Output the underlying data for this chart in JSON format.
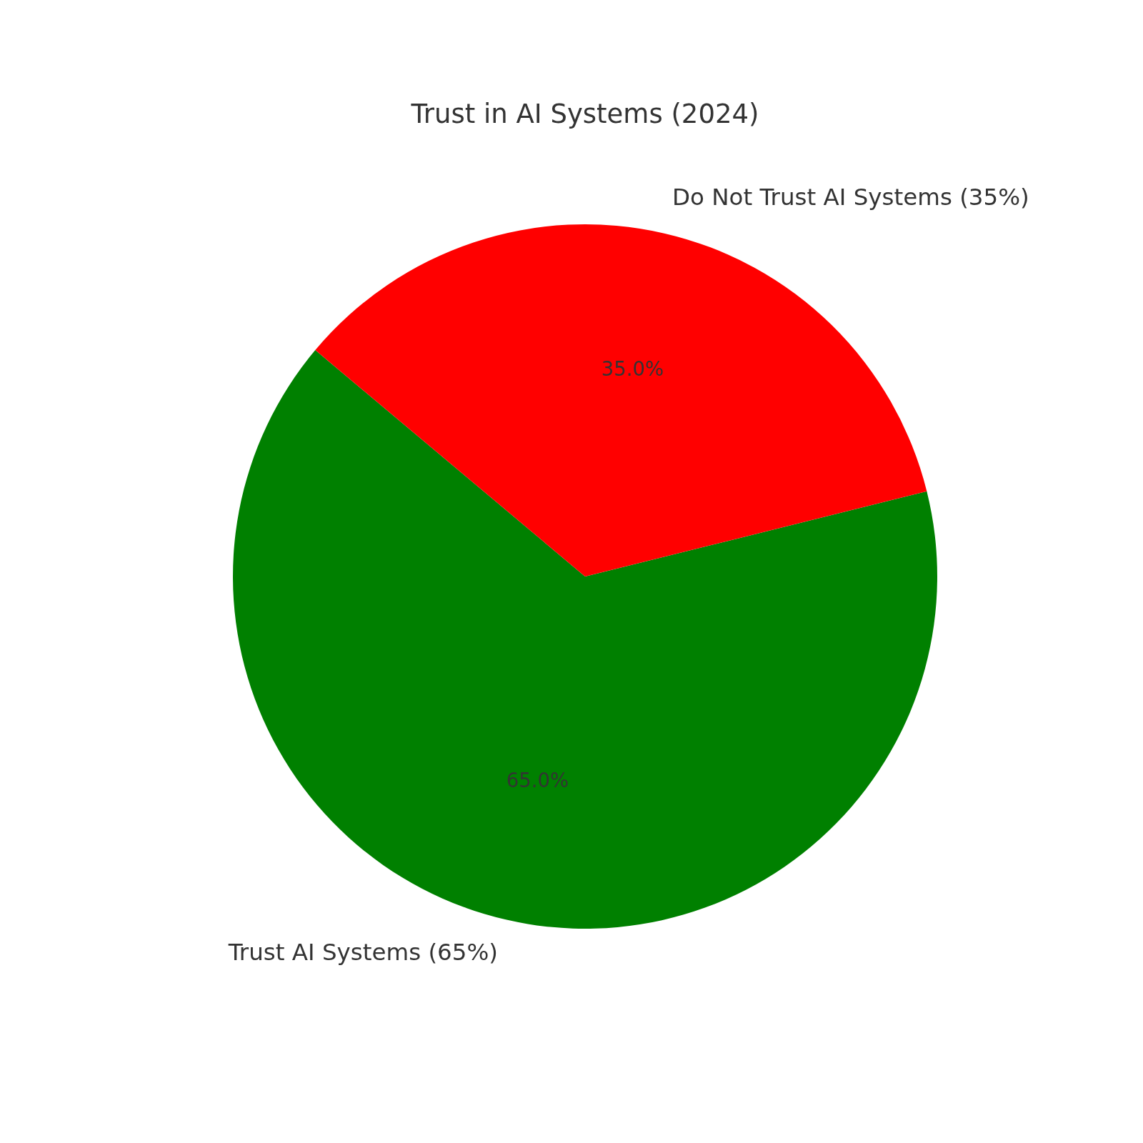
{
  "chart_data": {
    "type": "pie",
    "title": "Trust in AI Systems (2024)",
    "categories": [
      "Trust AI Systems (65%)",
      "Do Not Trust AI Systems (35%)"
    ],
    "values": [
      65,
      35
    ],
    "colors": [
      "#008000",
      "#ff0000"
    ],
    "value_labels": [
      "65.0%",
      "35.0%"
    ]
  }
}
